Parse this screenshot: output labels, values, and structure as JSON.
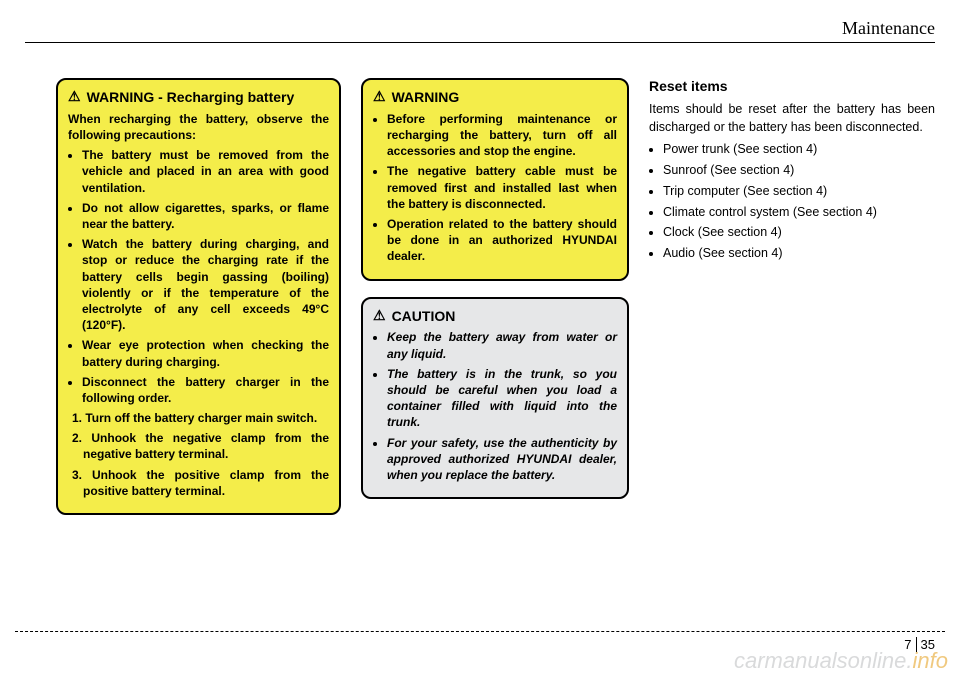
{
  "header": {
    "title": "Maintenance"
  },
  "col1": {
    "warning_label": "WARNING",
    "warning_suffix": " - Recharging battery",
    "intro": "When recharging the battery, observe the following precautions:",
    "bullets": [
      "The battery must be removed from the vehicle and placed in an area with good ventilation.",
      "Do not allow cigarettes, sparks, or flame near the battery.",
      "Watch the battery during charging, and stop or reduce the charging rate if the battery cells begin gassing (boiling) violently or if the temperature of the electrolyte of any cell exceeds 49°C (120°F).",
      "Wear eye protection when checking the battery during charging.",
      "Disconnect the battery charger in the following order."
    ],
    "ordered": [
      "1. Turn off the battery charger main switch.",
      "2. Unhook the negative clamp from the negative battery terminal.",
      "3. Unhook the positive clamp from the positive battery terminal."
    ]
  },
  "col2a": {
    "warning_label": "WARNING",
    "bullets": [
      "Before performing maintenance or recharging the battery, turn off all accessories and stop the engine.",
      "The negative battery cable must be removed first and installed last when the battery is disconnected.",
      "Operation related to the battery should be done in an authorized HYUNDAI dealer."
    ]
  },
  "col2b": {
    "caution_label": "CAUTION",
    "bullets": [
      "Keep the battery away from water or any liquid.",
      "The battery is in the trunk, so you should be careful when you load a container filled with liquid into the trunk.",
      "For your safety, use the authenticity by approved authorized HYUNDAI dealer, when you replace the battery."
    ]
  },
  "col3": {
    "title": "Reset items",
    "body": "Items should be reset after the battery has been discharged or the battery has been disconnected.",
    "bullets": [
      "Power trunk (See section 4)",
      "Sunroof (See section 4)",
      "Trip computer (See section 4)",
      "Climate control system (See section 4)",
      "Clock (See section 4)",
      "Audio (See section 4)"
    ]
  },
  "footer": {
    "section": "7",
    "page": "35"
  },
  "watermark": {
    "a": "carmanualsonline.",
    "b": "info"
  },
  "colors": {
    "yellow": "#f4ed4a",
    "grey": "#e6e7e8",
    "wm_grey": "#d9dadb",
    "wm_gold": "#f0c97f"
  }
}
